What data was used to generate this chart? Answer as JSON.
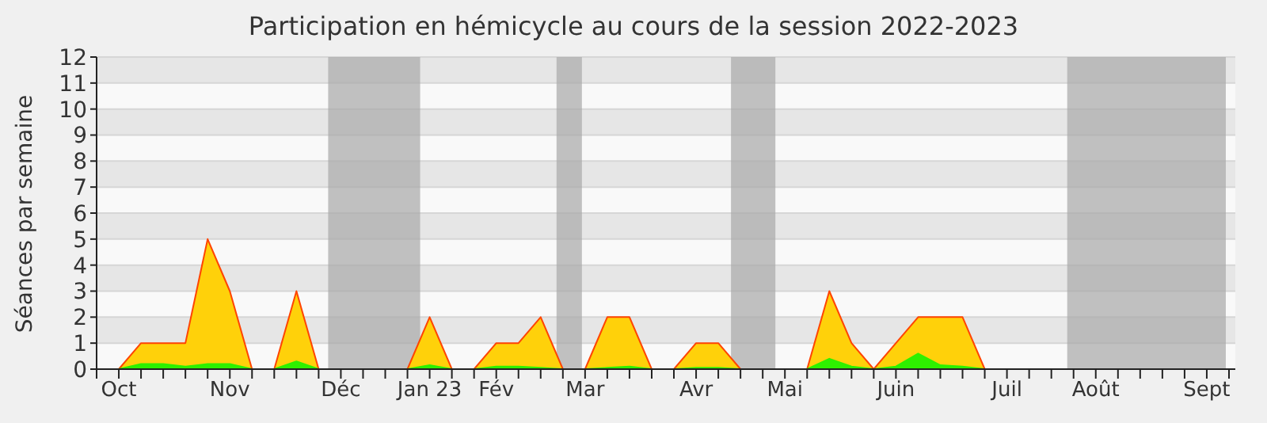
{
  "chart_data": {
    "type": "area",
    "title": "Participation en hémicycle au cours de la session 2022-2023",
    "ylabel": "Séances par semaine",
    "x": [
      "2022-10-10",
      "2022-10-17",
      "2022-10-24",
      "2022-10-31",
      "2022-11-07",
      "2022-11-14",
      "2022-11-21",
      "2022-11-28",
      "2022-12-05",
      "2022-12-12",
      "2022-12-19",
      "2022-12-26",
      "2023-01-02",
      "2023-01-09",
      "2023-01-16",
      "2023-01-23",
      "2023-01-30",
      "2023-02-06",
      "2023-02-13",
      "2023-02-20",
      "2023-02-27",
      "2023-03-06",
      "2023-03-13",
      "2023-03-20",
      "2023-03-27",
      "2023-04-03",
      "2023-04-10",
      "2023-04-17",
      "2023-04-24",
      "2023-05-01",
      "2023-05-08",
      "2023-05-15",
      "2023-05-22",
      "2023-05-29",
      "2023-06-05",
      "2023-06-12",
      "2023-06-19",
      "2023-06-26",
      "2023-07-03",
      "2023-07-10"
    ],
    "series": [
      {
        "color": "#ffd10a",
        "values": [
          0,
          1,
          1,
          1,
          5,
          3,
          0,
          0,
          3,
          0,
          0,
          0,
          0,
          0,
          2,
          0,
          0,
          1,
          1,
          2,
          0,
          0,
          2,
          2,
          0,
          0,
          1,
          1,
          0,
          0,
          0,
          0,
          3,
          1,
          0,
          1,
          2,
          2,
          2,
          0
        ]
      },
      {
        "color": "#2ef000",
        "values": [
          0,
          0.2,
          0.2,
          0.1,
          0.2,
          0.2,
          0,
          0,
          0.3,
          0,
          0,
          0,
          0,
          0,
          0.15,
          0,
          0,
          0.1,
          0.1,
          0.05,
          0,
          0,
          0.05,
          0.1,
          0,
          0,
          0.05,
          0.05,
          0,
          0,
          0,
          0,
          0.4,
          0.1,
          0,
          0.1,
          0.6,
          0.15,
          0.1,
          0
        ]
      }
    ],
    "xlim": [
      "2022-10-03",
      "2023-09-27"
    ],
    "xticks": [
      {
        "value": "2022-10-03",
        "label": null
      },
      {
        "value": "2022-10-10",
        "label": "Oct"
      },
      {
        "value": "2022-10-17",
        "label": null
      },
      {
        "value": "2022-10-24",
        "label": null
      },
      {
        "value": "2022-10-31",
        "label": null
      },
      {
        "value": "2022-11-07",
        "label": null
      },
      {
        "value": "2022-11-14",
        "label": "Nov"
      },
      {
        "value": "2022-11-21",
        "label": null
      },
      {
        "value": "2022-11-28",
        "label": null
      },
      {
        "value": "2022-12-05",
        "label": null
      },
      {
        "value": "2022-12-12",
        "label": null
      },
      {
        "value": "2022-12-19",
        "label": "Déc"
      },
      {
        "value": "2022-12-26",
        "label": null
      },
      {
        "value": "2023-01-02",
        "label": null
      },
      {
        "value": "2023-01-09",
        "label": null
      },
      {
        "value": "2023-01-16",
        "label": "Jan 23"
      },
      {
        "value": "2023-01-23",
        "label": null
      },
      {
        "value": "2023-01-30",
        "label": null
      },
      {
        "value": "2023-02-06",
        "label": "Fév"
      },
      {
        "value": "2023-02-13",
        "label": null
      },
      {
        "value": "2023-02-20",
        "label": null
      },
      {
        "value": "2023-02-27",
        "label": null
      },
      {
        "value": "2023-03-06",
        "label": "Mar"
      },
      {
        "value": "2023-03-13",
        "label": null
      },
      {
        "value": "2023-03-20",
        "label": null
      },
      {
        "value": "2023-03-27",
        "label": null
      },
      {
        "value": "2023-04-03",
        "label": null
      },
      {
        "value": "2023-04-10",
        "label": "Avr"
      },
      {
        "value": "2023-04-17",
        "label": null
      },
      {
        "value": "2023-04-24",
        "label": null
      },
      {
        "value": "2023-05-01",
        "label": null
      },
      {
        "value": "2023-05-08",
        "label": "Mai"
      },
      {
        "value": "2023-05-15",
        "label": null
      },
      {
        "value": "2023-05-22",
        "label": null
      },
      {
        "value": "2023-05-29",
        "label": null
      },
      {
        "value": "2023-06-05",
        "label": null
      },
      {
        "value": "2023-06-12",
        "label": "Juin"
      },
      {
        "value": "2023-06-19",
        "label": null
      },
      {
        "value": "2023-06-26",
        "label": null
      },
      {
        "value": "2023-07-03",
        "label": null
      },
      {
        "value": "2023-07-10",
        "label": null
      },
      {
        "value": "2023-07-17",
        "label": "Juil"
      },
      {
        "value": "2023-07-24",
        "label": null
      },
      {
        "value": "2023-07-31",
        "label": null
      },
      {
        "value": "2023-08-07",
        "label": null
      },
      {
        "value": "2023-08-14",
        "label": "Août"
      },
      {
        "value": "2023-08-21",
        "label": null
      },
      {
        "value": "2023-08-28",
        "label": null
      },
      {
        "value": "2023-09-04",
        "label": null
      },
      {
        "value": "2023-09-11",
        "label": null
      },
      {
        "value": "2023-09-18",
        "label": "Sept"
      },
      {
        "value": "2023-09-25",
        "label": null
      }
    ],
    "ylim": [
      0,
      12
    ],
    "yticks": [
      0,
      1,
      2,
      3,
      4,
      5,
      6,
      7,
      8,
      9,
      10,
      11,
      12
    ],
    "grid": "y",
    "bands": [
      {
        "axis": "x",
        "from": "2022-12-15",
        "to": "2023-01-13",
        "color": "#a8a8a8"
      },
      {
        "axis": "x",
        "from": "2023-02-25",
        "to": "2023-03-05",
        "color": "#a8a8a8"
      },
      {
        "axis": "x",
        "from": "2023-04-21",
        "to": "2023-05-05",
        "color": "#a8a8a8"
      },
      {
        "axis": "x",
        "from": "2023-08-05",
        "to": "2023-09-24",
        "color": "#a8a8a8"
      }
    ]
  }
}
